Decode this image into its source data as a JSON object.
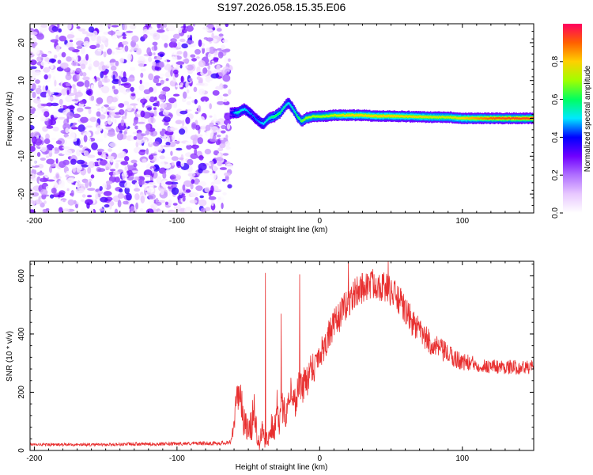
{
  "title": "S197.2026.058.15.35.E06",
  "chart_data": [
    {
      "type": "heatmap",
      "name": "spectrogram",
      "xlabel": "Height of straight line (km)",
      "ylabel": "Frequency (Hz)",
      "xlim": [
        -203,
        150
      ],
      "ylim": [
        -25,
        25
      ],
      "xticks": [
        -200,
        -100,
        0,
        100
      ],
      "yticks": [
        -20,
        -10,
        0,
        10,
        20
      ],
      "colorbar": {
        "label": "Normalized spectral amplitude",
        "range": [
          0.0,
          1.0
        ],
        "ticks": [
          0.0,
          0.2,
          0.4,
          0.6,
          0.8
        ],
        "colors": [
          "#ffffff",
          "#e8c8ff",
          "#b070ff",
          "#7000ff",
          "#0000ff",
          "#00e8ff",
          "#00ff60",
          "#a0ff00",
          "#ffd000",
          "#ff6000",
          "#ff0060"
        ]
      },
      "noise_region": {
        "x": [
          -203,
          -63
        ],
        "f": [
          -25,
          25
        ],
        "amplitude": [
          0.0,
          0.3
        ]
      },
      "signal_track": {
        "x": [
          -63,
          -58,
          -53,
          -48,
          -44,
          -40,
          -36,
          -32,
          -28,
          -24,
          -22,
          -19,
          -16,
          -13,
          -10,
          -5,
          0,
          10,
          20,
          30,
          40,
          50,
          60,
          70,
          80,
          90,
          100,
          110,
          120,
          130,
          140,
          150
        ],
        "f": [
          1.5,
          1.5,
          2.5,
          1.0,
          -0.5,
          -1.5,
          0.0,
          0.5,
          1.5,
          3.5,
          4.0,
          2.5,
          0.5,
          -0.8,
          0.0,
          0.5,
          0.5,
          0.8,
          0.8,
          0.8,
          0.6,
          0.6,
          0.5,
          0.4,
          0.3,
          0.3,
          0.0,
          0.0,
          0.0,
          0.0,
          0.0,
          0.0
        ],
        "amplitude": [
          0.35,
          0.55,
          0.5,
          0.45,
          0.45,
          0.5,
          0.55,
          0.6,
          0.6,
          0.55,
          0.5,
          0.55,
          0.6,
          0.65,
          0.7,
          0.7,
          0.7,
          0.75,
          0.8,
          0.8,
          0.8,
          0.8,
          0.78,
          0.78,
          0.75,
          0.75,
          0.8,
          0.85,
          0.9,
          0.92,
          0.92,
          0.92
        ]
      }
    },
    {
      "type": "line",
      "name": "snr",
      "xlabel": "Height of straight line (km)",
      "ylabel": "SNR (10 * v/v)",
      "xlim": [
        -203,
        150
      ],
      "ylim": [
        0,
        650
      ],
      "xticks": [
        -200,
        -100,
        0,
        100
      ],
      "yticks": [
        0,
        200,
        400,
        600
      ],
      "series": [
        {
          "name": "SNR",
          "color": "#e83030",
          "x": [
            -203,
            -190,
            -170,
            -150,
            -130,
            -110,
            -90,
            -70,
            -62,
            -58,
            -56,
            -54,
            -52,
            -50,
            -48,
            -46,
            -44,
            -42,
            -40,
            -38,
            -36,
            -34,
            -32,
            -30,
            -28,
            -26,
            -24,
            -22,
            -20,
            -18,
            -16,
            -14,
            -12,
            -10,
            -8,
            -6,
            -4,
            -2,
            0,
            5,
            10,
            15,
            20,
            25,
            30,
            35,
            40,
            45,
            50,
            55,
            60,
            65,
            70,
            75,
            80,
            85,
            90,
            95,
            100,
            105,
            110,
            115,
            120,
            125,
            130,
            135,
            140,
            145,
            150
          ],
          "y": [
            20,
            20,
            20,
            20,
            22,
            22,
            24,
            25,
            30,
            170,
            220,
            120,
            90,
            60,
            80,
            150,
            60,
            40,
            80,
            40,
            30,
            90,
            50,
            180,
            90,
            150,
            120,
            180,
            210,
            160,
            190,
            240,
            200,
            260,
            240,
            300,
            280,
            320,
            330,
            380,
            430,
            470,
            510,
            540,
            560,
            570,
            575,
            560,
            545,
            520,
            480,
            440,
            410,
            380,
            360,
            345,
            330,
            315,
            305,
            300,
            295,
            290,
            290,
            288,
            287,
            286,
            285,
            285,
            285
          ],
          "noise_amplitude": [
            5,
            5,
            5,
            5,
            6,
            6,
            6,
            7,
            10,
            60,
            60,
            60,
            50,
            50,
            60,
            60,
            50,
            40,
            50,
            40,
            30,
            50,
            40,
            60,
            50,
            60,
            50,
            60,
            60,
            60,
            60,
            60,
            60,
            60,
            60,
            55,
            55,
            55,
            55,
            55,
            55,
            55,
            55,
            55,
            55,
            55,
            55,
            55,
            55,
            55,
            50,
            50,
            45,
            45,
            40,
            40,
            35,
            35,
            30,
            30,
            25,
            25,
            25,
            25,
            25,
            25,
            25,
            25,
            25
          ],
          "spikes": [
            {
              "x": -38,
              "y": 610
            },
            {
              "x": -27,
              "y": 470
            },
            {
              "x": -14,
              "y": 605
            },
            {
              "x": 48,
              "y": 650
            },
            {
              "x": 20,
              "y": 645
            }
          ]
        }
      ]
    }
  ]
}
